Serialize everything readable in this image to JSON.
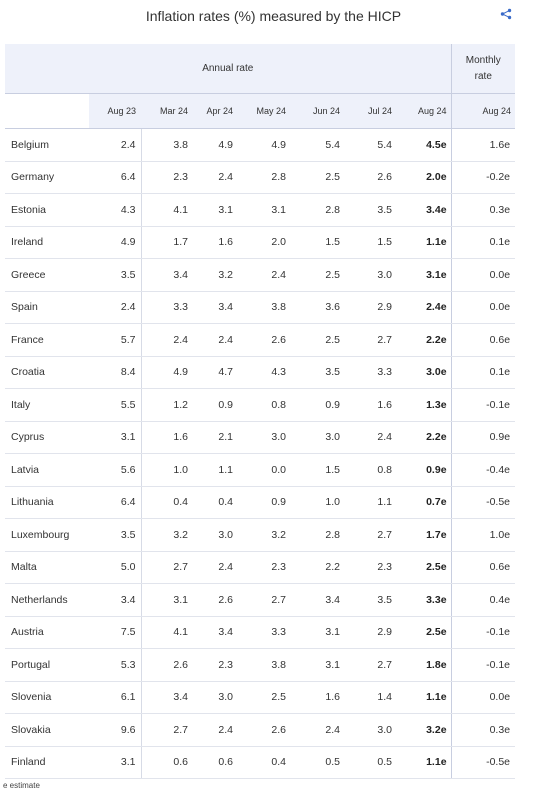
{
  "header": {
    "title": "Inflation rates (%) measured by the HICP",
    "share_icon": "share-icon"
  },
  "chart_data": {
    "type": "table",
    "group_headers": {
      "annual": "Annual rate",
      "monthly": "Monthly rate"
    },
    "columns": [
      "Aug 23",
      "Mar 24",
      "Apr 24",
      "May 24",
      "Jun 24",
      "Jul 24",
      "Aug 24",
      "Aug 24"
    ],
    "rows": [
      {
        "country": "Belgium",
        "values": [
          "2.4",
          "3.8",
          "4.9",
          "4.9",
          "5.4",
          "5.4",
          "4.5e",
          "1.6e"
        ]
      },
      {
        "country": "Germany",
        "values": [
          "6.4",
          "2.3",
          "2.4",
          "2.8",
          "2.5",
          "2.6",
          "2.0e",
          "-0.2e"
        ]
      },
      {
        "country": "Estonia",
        "values": [
          "4.3",
          "4.1",
          "3.1",
          "3.1",
          "2.8",
          "3.5",
          "3.4e",
          "0.3e"
        ]
      },
      {
        "country": "Ireland",
        "values": [
          "4.9",
          "1.7",
          "1.6",
          "2.0",
          "1.5",
          "1.5",
          "1.1e",
          "0.1e"
        ]
      },
      {
        "country": "Greece",
        "values": [
          "3.5",
          "3.4",
          "3.2",
          "2.4",
          "2.5",
          "3.0",
          "3.1e",
          "0.0e"
        ]
      },
      {
        "country": "Spain",
        "values": [
          "2.4",
          "3.3",
          "3.4",
          "3.8",
          "3.6",
          "2.9",
          "2.4e",
          "0.0e"
        ]
      },
      {
        "country": "France",
        "values": [
          "5.7",
          "2.4",
          "2.4",
          "2.6",
          "2.5",
          "2.7",
          "2.2e",
          "0.6e"
        ]
      },
      {
        "country": "Croatia",
        "values": [
          "8.4",
          "4.9",
          "4.7",
          "4.3",
          "3.5",
          "3.3",
          "3.0e",
          "0.1e"
        ]
      },
      {
        "country": "Italy",
        "values": [
          "5.5",
          "1.2",
          "0.9",
          "0.8",
          "0.9",
          "1.6",
          "1.3e",
          "-0.1e"
        ]
      },
      {
        "country": "Cyprus",
        "values": [
          "3.1",
          "1.6",
          "2.1",
          "3.0",
          "3.0",
          "2.4",
          "2.2e",
          "0.9e"
        ]
      },
      {
        "country": "Latvia",
        "values": [
          "5.6",
          "1.0",
          "1.1",
          "0.0",
          "1.5",
          "0.8",
          "0.9e",
          "-0.4e"
        ]
      },
      {
        "country": "Lithuania",
        "values": [
          "6.4",
          "0.4",
          "0.4",
          "0.9",
          "1.0",
          "1.1",
          "0.7e",
          "-0.5e"
        ]
      },
      {
        "country": "Luxembourg",
        "values": [
          "3.5",
          "3.2",
          "3.0",
          "3.2",
          "2.8",
          "2.7",
          "1.7e",
          "1.0e"
        ]
      },
      {
        "country": "Malta",
        "values": [
          "5.0",
          "2.7",
          "2.4",
          "2.3",
          "2.2",
          "2.3",
          "2.5e",
          "0.6e"
        ]
      },
      {
        "country": "Netherlands",
        "values": [
          "3.4",
          "3.1",
          "2.6",
          "2.7",
          "3.4",
          "3.5",
          "3.3e",
          "0.4e"
        ]
      },
      {
        "country": "Austria",
        "values": [
          "7.5",
          "4.1",
          "3.4",
          "3.3",
          "3.1",
          "2.9",
          "2.5e",
          "-0.1e"
        ]
      },
      {
        "country": "Portugal",
        "values": [
          "5.3",
          "2.6",
          "2.3",
          "3.8",
          "3.1",
          "2.7",
          "1.8e",
          "-0.1e"
        ]
      },
      {
        "country": "Slovenia",
        "values": [
          "6.1",
          "3.4",
          "3.0",
          "2.5",
          "1.6",
          "1.4",
          "1.1e",
          "0.0e"
        ]
      },
      {
        "country": "Slovakia",
        "values": [
          "9.6",
          "2.7",
          "2.4",
          "2.6",
          "2.4",
          "3.0",
          "3.2e",
          "0.3e"
        ]
      },
      {
        "country": "Finland",
        "values": [
          "3.1",
          "0.6",
          "0.6",
          "0.4",
          "0.5",
          "0.5",
          "1.1e",
          "-0.5e"
        ]
      }
    ]
  },
  "footnote": "e estimate",
  "colors": {
    "header_bg": "#eef1fa",
    "accent": "#3a6bc9",
    "grid": "#e1e4ec"
  }
}
